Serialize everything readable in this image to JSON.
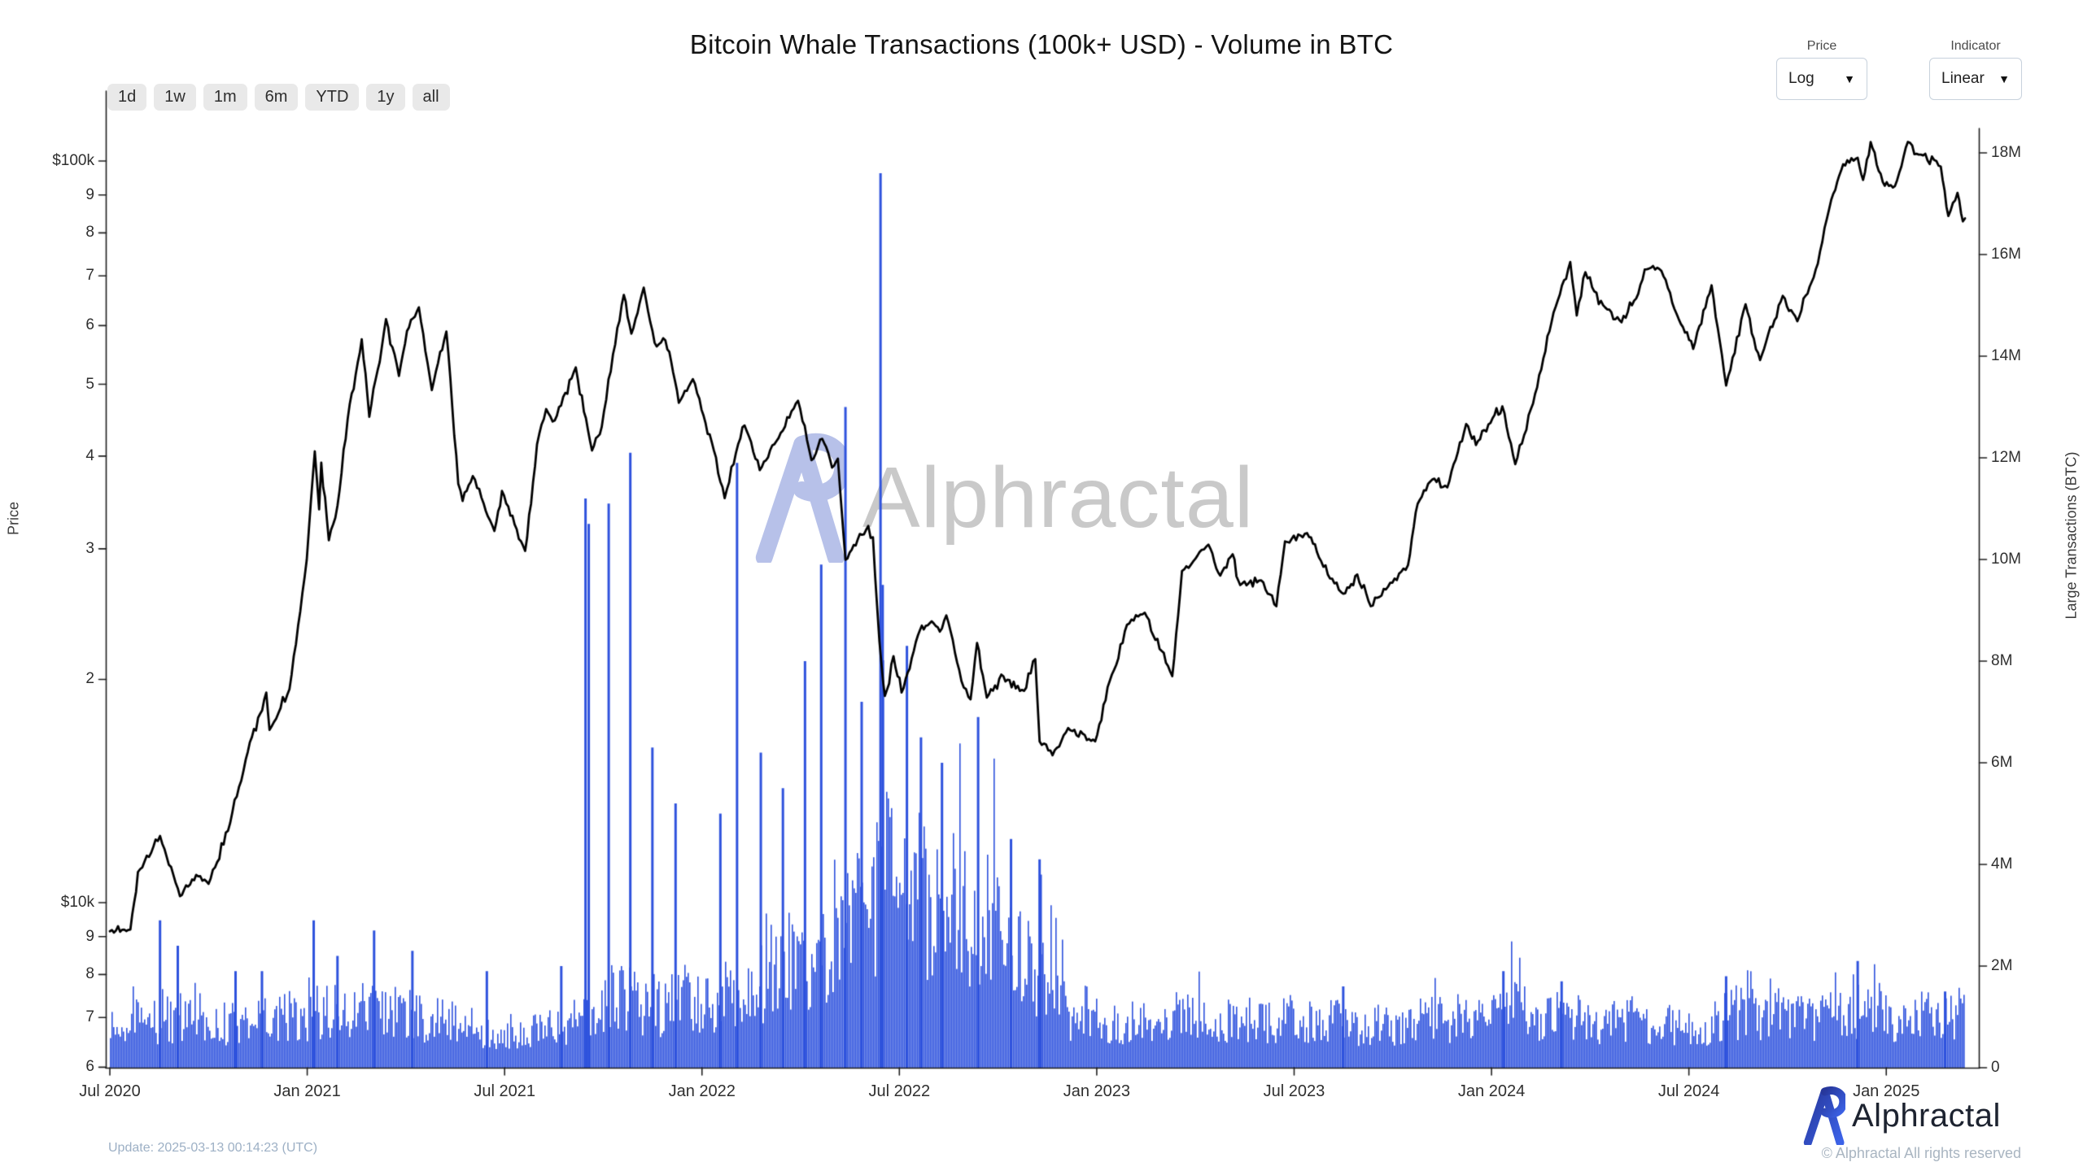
{
  "header": {
    "title": "Bitcoin Whale Transactions (100k+ USD) - Volume in BTC"
  },
  "toolbar": {
    "range_buttons": [
      "1d",
      "1w",
      "1m",
      "6m",
      "YTD",
      "1y",
      "all"
    ]
  },
  "controls": {
    "price_dropdown": {
      "label": "Price",
      "value": "Log"
    },
    "indicator_dropdown": {
      "label": "Indicator",
      "value": "Linear"
    }
  },
  "watermark": {
    "brand": "Alphractal"
  },
  "footer": {
    "update_text": "Update: 2025-03-13 00:14:23 (UTC)",
    "brand": "Alphractal",
    "copyright": "© Alphractal All rights reserved"
  },
  "colors": {
    "bar": "#2e52dd",
    "line": "#000000",
    "axis": "#1f1f1f",
    "watermark_text": "#c9c9c9",
    "watermark_logo": "#b7c1e9",
    "logo_blue_dark": "#27379b",
    "logo_blue": "#3c63e8"
  },
  "chart_data": {
    "type": "line+bar",
    "title": "Bitcoin Whale Transactions (100k+ USD) - Volume in BTC",
    "x_start": "2020-07-01",
    "x_end": "2025-03-13",
    "x_ticks": [
      {
        "label": "Jul 2020",
        "month_index": 0
      },
      {
        "label": "Jan 2021",
        "month_index": 6
      },
      {
        "label": "Jul 2021",
        "month_index": 12
      },
      {
        "label": "Jan 2022",
        "month_index": 18
      },
      {
        "label": "Jul 2022",
        "month_index": 24
      },
      {
        "label": "Jan 2023",
        "month_index": 30
      },
      {
        "label": "Jul 2023",
        "month_index": 36
      },
      {
        "label": "Jan 2024",
        "month_index": 42
      },
      {
        "label": "Jul 2024",
        "month_index": 48
      },
      {
        "label": "Jan 2025",
        "month_index": 54
      }
    ],
    "y_left": {
      "label": "Price",
      "scale": "log",
      "unit": "USD",
      "ticks": [
        {
          "label": "$100k",
          "value": 100000
        },
        {
          "label": "9",
          "value": 90000
        },
        {
          "label": "8",
          "value": 80000
        },
        {
          "label": "7",
          "value": 70000
        },
        {
          "label": "6",
          "value": 60000
        },
        {
          "label": "5",
          "value": 50000
        },
        {
          "label": "4",
          "value": 40000
        },
        {
          "label": "3",
          "value": 30000
        },
        {
          "label": "2",
          "value": 20000
        },
        {
          "label": "$10k",
          "value": 10000
        },
        {
          "label": "9",
          "value": 9000
        },
        {
          "label": "8",
          "value": 8000
        },
        {
          "label": "7",
          "value": 7000
        },
        {
          "label": "6",
          "value": 6000
        }
      ]
    },
    "y_right": {
      "label": "Large Transactions (BTC)",
      "scale": "linear",
      "ticks_M": [
        0,
        2,
        4,
        6,
        8,
        10,
        12,
        14,
        16,
        18
      ],
      "max_M": 19
    },
    "price_series": {
      "name": "BTC Price (USD)",
      "points": [
        [
          "2020-07-01",
          9150
        ],
        [
          "2020-07-20",
          9200
        ],
        [
          "2020-07-27",
          11000
        ],
        [
          "2020-08-17",
          12300
        ],
        [
          "2020-09-05",
          10200
        ],
        [
          "2020-09-20",
          10900
        ],
        [
          "2020-10-01",
          10600
        ],
        [
          "2020-10-21",
          12800
        ],
        [
          "2020-11-05",
          15600
        ],
        [
          "2020-11-24",
          19200
        ],
        [
          "2020-11-27",
          17100
        ],
        [
          "2020-12-15",
          19400
        ],
        [
          "2020-12-31",
          29000
        ],
        [
          "2021-01-08",
          40600
        ],
        [
          "2021-01-12",
          33900
        ],
        [
          "2021-01-14",
          39200
        ],
        [
          "2021-01-21",
          30800
        ],
        [
          "2021-01-29",
          34300
        ],
        [
          "2021-02-08",
          44900
        ],
        [
          "2021-02-21",
          57500
        ],
        [
          "2021-02-28",
          45200
        ],
        [
          "2021-03-13",
          61200
        ],
        [
          "2021-03-25",
          51300
        ],
        [
          "2021-04-02",
          59000
        ],
        [
          "2021-04-13",
          63500
        ],
        [
          "2021-04-25",
          49100
        ],
        [
          "2021-05-08",
          58900
        ],
        [
          "2021-05-19",
          36700
        ],
        [
          "2021-05-23",
          34800
        ],
        [
          "2021-06-02",
          37600
        ],
        [
          "2021-06-22",
          31700
        ],
        [
          "2021-06-29",
          35900
        ],
        [
          "2021-07-20",
          29800
        ],
        [
          "2021-07-31",
          41500
        ],
        [
          "2021-08-09",
          46300
        ],
        [
          "2021-08-17",
          44700
        ],
        [
          "2021-09-06",
          52700
        ],
        [
          "2021-09-21",
          40700
        ],
        [
          "2021-09-30",
          43800
        ],
        [
          "2021-10-10",
          54900
        ],
        [
          "2021-10-20",
          66000
        ],
        [
          "2021-10-27",
          58500
        ],
        [
          "2021-11-08",
          67500
        ],
        [
          "2021-11-18",
          56900
        ],
        [
          "2021-11-28",
          57300
        ],
        [
          "2021-12-03",
          53600
        ],
        [
          "2021-12-10",
          47200
        ],
        [
          "2021-12-23",
          50800
        ],
        [
          "2021-12-31",
          46200
        ],
        [
          "2022-01-10",
          41800
        ],
        [
          "2022-01-22",
          35100
        ],
        [
          "2022-02-04",
          41500
        ],
        [
          "2022-02-10",
          44000
        ],
        [
          "2022-02-24",
          38300
        ],
        [
          "2022-03-09",
          41900
        ],
        [
          "2022-03-29",
          47500
        ],
        [
          "2022-04-11",
          39500
        ],
        [
          "2022-04-21",
          42200
        ],
        [
          "2022-04-30",
          38600
        ],
        [
          "2022-05-05",
          39700
        ],
        [
          "2022-05-12",
          29000
        ],
        [
          "2022-05-31",
          31800
        ],
        [
          "2022-06-07",
          31100
        ],
        [
          "2022-06-13",
          22500
        ],
        [
          "2022-06-18",
          19000
        ],
        [
          "2022-06-26",
          21500
        ],
        [
          "2022-07-03",
          19200
        ],
        [
          "2022-07-20",
          23300
        ],
        [
          "2022-07-29",
          23800
        ],
        [
          "2022-08-08",
          23200
        ],
        [
          "2022-08-14",
          24400
        ],
        [
          "2022-08-28",
          19900
        ],
        [
          "2022-09-06",
          18800
        ],
        [
          "2022-09-12",
          22400
        ],
        [
          "2022-09-21",
          18900
        ],
        [
          "2022-10-04",
          20300
        ],
        [
          "2022-10-25",
          19300
        ],
        [
          "2022-11-05",
          21300
        ],
        [
          "2022-11-09",
          16500
        ],
        [
          "2022-11-21",
          15800
        ],
        [
          "2022-12-05",
          17200
        ],
        [
          "2022-12-30",
          16500
        ],
        [
          "2023-01-13",
          19900
        ],
        [
          "2023-01-29",
          23700
        ],
        [
          "2023-02-15",
          24600
        ],
        [
          "2023-03-10",
          20200
        ],
        [
          "2023-03-19",
          28000
        ],
        [
          "2023-04-13",
          30400
        ],
        [
          "2023-04-24",
          27600
        ],
        [
          "2023-05-05",
          29500
        ],
        [
          "2023-05-12",
          26800
        ],
        [
          "2023-06-01",
          27200
        ],
        [
          "2023-06-15",
          25100
        ],
        [
          "2023-06-23",
          30700
        ],
        [
          "2023-07-13",
          31500
        ],
        [
          "2023-07-24",
          29200
        ],
        [
          "2023-08-16",
          26100
        ],
        [
          "2023-08-29",
          27700
        ],
        [
          "2023-09-11",
          25100
        ],
        [
          "2023-09-29",
          27000
        ],
        [
          "2023-10-15",
          28500
        ],
        [
          "2023-10-24",
          34500
        ],
        [
          "2023-11-09",
          37300
        ],
        [
          "2023-11-21",
          36300
        ],
        [
          "2023-12-08",
          44200
        ],
        [
          "2023-12-17",
          41400
        ],
        [
          "2024-01-02",
          45000
        ],
        [
          "2024-01-11",
          46700
        ],
        [
          "2024-01-23",
          39000
        ],
        [
          "2024-02-09",
          47100
        ],
        [
          "2024-02-28",
          62500
        ],
        [
          "2024-03-13",
          73100
        ],
        [
          "2024-03-19",
          61900
        ],
        [
          "2024-03-27",
          70800
        ],
        [
          "2024-04-13",
          63900
        ],
        [
          "2024-04-30",
          60600
        ],
        [
          "2024-05-15",
          66200
        ],
        [
          "2024-05-21",
          71400
        ],
        [
          "2024-06-06",
          71100
        ],
        [
          "2024-06-24",
          60300
        ],
        [
          "2024-07-05",
          55800
        ],
        [
          "2024-07-22",
          68000
        ],
        [
          "2024-08-05",
          49800
        ],
        [
          "2024-08-23",
          64100
        ],
        [
          "2024-09-06",
          53900
        ],
        [
          "2024-09-27",
          65800
        ],
        [
          "2024-10-10",
          60800
        ],
        [
          "2024-10-29",
          72700
        ],
        [
          "2024-11-11",
          88700
        ],
        [
          "2024-11-22",
          99000
        ],
        [
          "2024-12-05",
          101000
        ],
        [
          "2024-12-10",
          94300
        ],
        [
          "2024-12-17",
          106100
        ],
        [
          "2024-12-30",
          92600
        ],
        [
          "2025-01-09",
          92500
        ],
        [
          "2025-01-21",
          106100
        ],
        [
          "2025-01-31",
          102000
        ],
        [
          "2025-02-21",
          98300
        ],
        [
          "2025-02-28",
          84300
        ],
        [
          "2025-03-06",
          90600
        ],
        [
          "2025-03-11",
          82900
        ],
        [
          "2025-03-13",
          83700
        ]
      ]
    },
    "volume_series": {
      "name": "Whale Transaction Volume (BTC)",
      "baseline_start_month": "2020-07",
      "monthly_baseline_M": [
        0.85,
        0.95,
        1.05,
        0.9,
        1.05,
        1.0,
        1.25,
        1.1,
        1.15,
        1.05,
        0.95,
        0.85,
        0.8,
        0.95,
        1.2,
        1.35,
        1.3,
        1.35,
        1.5,
        1.7,
        1.9,
        2.1,
        2.8,
        3.4,
        3.5,
        3.1,
        2.9,
        2.3,
        2.0,
        1.15,
        0.95,
        0.95,
        1.0,
        0.9,
        0.9,
        0.95,
        0.9,
        0.95,
        0.9,
        0.9,
        0.95,
        0.95,
        1.05,
        0.95,
        1.0,
        0.95,
        0.9,
        0.9,
        0.95,
        1.0,
        0.9,
        0.95,
        1.0,
        1.05,
        0.95,
        1.0,
        0.95
      ],
      "spikes_M": [
        [
          "2020-08-17",
          2.9
        ],
        [
          "2020-09-03",
          2.4
        ],
        [
          "2020-10-26",
          1.9
        ],
        [
          "2020-11-20",
          1.9
        ],
        [
          "2021-01-07",
          2.9
        ],
        [
          "2021-01-29",
          2.2
        ],
        [
          "2021-03-02",
          2.7
        ],
        [
          "2021-04-07",
          2.3
        ],
        [
          "2021-06-15",
          1.9
        ],
        [
          "2021-08-23",
          2.0
        ],
        [
          "2021-09-15",
          11.2
        ],
        [
          "2021-09-18",
          10.7
        ],
        [
          "2021-10-06",
          11.1
        ],
        [
          "2021-10-26",
          12.1
        ],
        [
          "2021-11-16",
          6.3
        ],
        [
          "2021-12-07",
          5.2
        ],
        [
          "2022-01-18",
          5.0
        ],
        [
          "2022-02-03",
          11.9
        ],
        [
          "2022-02-25",
          6.2
        ],
        [
          "2022-03-15",
          5.5
        ],
        [
          "2022-04-05",
          8.0
        ],
        [
          "2022-04-20",
          9.9
        ],
        [
          "2022-05-12",
          13.0
        ],
        [
          "2022-05-27",
          7.2
        ],
        [
          "2022-06-14",
          17.6
        ],
        [
          "2022-06-16",
          9.5
        ],
        [
          "2022-07-08",
          8.3
        ],
        [
          "2022-07-21",
          6.5
        ],
        [
          "2022-08-10",
          6.0
        ],
        [
          "2022-09-13",
          6.9
        ],
        [
          "2022-10-13",
          4.5
        ],
        [
          "2022-11-09",
          4.1
        ],
        [
          "2022-11-10",
          3.8
        ],
        [
          "2023-08-16",
          1.6
        ],
        [
          "2024-01-12",
          1.9
        ],
        [
          "2024-03-05",
          1.7
        ],
        [
          "2024-08-05",
          1.8
        ],
        [
          "2024-12-05",
          2.1
        ],
        [
          "2025-02-25",
          1.5
        ]
      ]
    }
  }
}
